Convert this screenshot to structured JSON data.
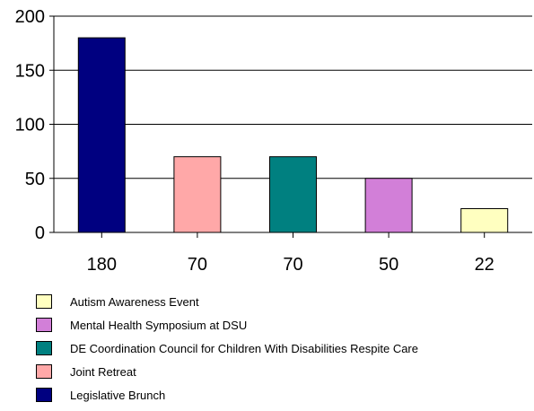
{
  "chart_data": {
    "type": "bar",
    "categories": [
      "180",
      "70",
      "70",
      "50",
      "22"
    ],
    "values": [
      180,
      70,
      70,
      50,
      22
    ],
    "series_names": [
      "Legislative Brunch",
      "Joint Retreat",
      "DE Coordination Council for Children With Disabilities Respite Care",
      "Mental Health Symposium at DSU",
      "Autism Awareness Event"
    ],
    "colors": [
      "#000080",
      "#FFA8A8",
      "#008080",
      "#D27FD8",
      "#FFFFC0"
    ],
    "ylim": [
      0,
      200
    ],
    "yticks": [
      "0",
      "50",
      "100",
      "150",
      "200"
    ],
    "grid": true,
    "legend_position": "bottom"
  },
  "legend": [
    {
      "label": "Autism Awareness Event",
      "color": "#FFFFC0"
    },
    {
      "label": "Mental Health Symposium at DSU",
      "color": "#D27FD8"
    },
    {
      "label": "DE Coordination Council for Children With Disabilities Respite Care",
      "color": "#008080"
    },
    {
      "label": "Joint Retreat",
      "color": "#FFA8A8"
    },
    {
      "label": "Legislative Brunch",
      "color": "#000080"
    }
  ]
}
